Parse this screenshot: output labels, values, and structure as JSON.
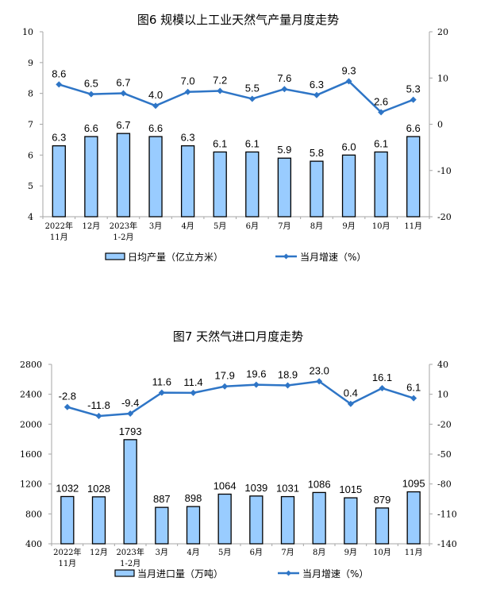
{
  "colors": {
    "bar_fill": "#99ccff",
    "bar_stroke": "#000000",
    "line": "#2e75c6",
    "axis": "#a6a6a6"
  },
  "chart_data": [
    {
      "type": "bar+line",
      "title": "图6  规模以上工业天然气产量月度走势",
      "categories": [
        [
          "2022年",
          "11月"
        ],
        [
          "12月"
        ],
        [
          "2023年",
          "1-2月"
        ],
        [
          "3月"
        ],
        [
          "4月"
        ],
        [
          "5月"
        ],
        [
          "6月"
        ],
        [
          "7月"
        ],
        [
          "8月"
        ],
        [
          "9月"
        ],
        [
          "10月"
        ],
        [
          "11月"
        ]
      ],
      "series": [
        {
          "name": "日均产量（亿立方米）",
          "type": "bar",
          "axis": "left",
          "values": [
            6.3,
            6.6,
            6.7,
            6.6,
            6.3,
            6.1,
            6.1,
            5.9,
            5.8,
            6.0,
            6.1,
            6.6
          ],
          "labels": [
            "6.3",
            "6.6",
            "6.7",
            "6.6",
            "6.3",
            "6.1",
            "6.1",
            "5.9",
            "5.8",
            "6.0",
            "6.1",
            "6.6"
          ]
        },
        {
          "name": "当月增速（%）",
          "type": "line",
          "axis": "right",
          "values": [
            8.6,
            6.5,
            6.7,
            4.0,
            7.0,
            7.2,
            5.5,
            7.6,
            6.3,
            9.3,
            2.6,
            5.3
          ],
          "labels": [
            "8.6",
            "6.5",
            "6.7",
            "4.0",
            "7.0",
            "7.2",
            "5.5",
            "7.6",
            "6.3",
            "9.3",
            "2.6",
            "5.3"
          ]
        }
      ],
      "left_axis": {
        "range": [
          4,
          10
        ],
        "ticks": [
          "10",
          "9",
          "8",
          "7",
          "6",
          "5",
          "4"
        ]
      },
      "right_axis": {
        "range": [
          -20,
          20
        ],
        "ticks": [
          "20",
          "10",
          "0",
          "-10",
          "-20"
        ]
      },
      "legend_position": "bottom",
      "grid": false
    },
    {
      "type": "bar+line",
      "title": "图7  天然气进口月度走势",
      "categories": [
        [
          "2022年",
          "11月"
        ],
        [
          "12月"
        ],
        [
          "2023年",
          "1-2月"
        ],
        [
          "3月"
        ],
        [
          "4月"
        ],
        [
          "5月"
        ],
        [
          "6月"
        ],
        [
          "7月"
        ],
        [
          "8月"
        ],
        [
          "9月"
        ],
        [
          "10月"
        ],
        [
          "11月"
        ]
      ],
      "series": [
        {
          "name": "当月进口量（万吨）",
          "type": "bar",
          "axis": "left",
          "values": [
            1032,
            1028,
            1793,
            887,
            898,
            1064,
            1039,
            1031,
            1086,
            1015,
            879,
            1095
          ],
          "labels": [
            "1032",
            "1028",
            "1793",
            "887",
            "898",
            "1064",
            "1039",
            "1031",
            "1086",
            "1015",
            "879",
            "1095"
          ]
        },
        {
          "name": "当月增速（%）",
          "type": "line",
          "axis": "right",
          "values": [
            -2.8,
            -11.8,
            -9.4,
            11.6,
            11.4,
            17.9,
            19.6,
            18.9,
            23.0,
            0.4,
            16.1,
            6.1
          ],
          "labels": [
            "-2.8",
            "-11.8",
            "-9.4",
            "11.6",
            "11.4",
            "17.9",
            "19.6",
            "18.9",
            "23.0",
            "0.4",
            "16.1",
            "6.1"
          ]
        }
      ],
      "left_axis": {
        "range": [
          400,
          2800
        ],
        "ticks": [
          "2800",
          "2400",
          "2000",
          "1600",
          "1200",
          "800",
          "400"
        ]
      },
      "right_axis": {
        "range": [
          -140,
          40
        ],
        "ticks": [
          "40",
          "10",
          "-20",
          "-50",
          "-80",
          "-110",
          "-140"
        ]
      },
      "legend_position": "bottom",
      "grid": false
    }
  ]
}
